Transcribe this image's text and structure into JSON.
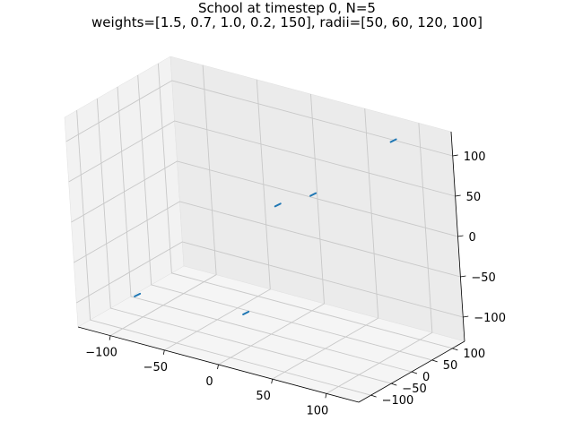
{
  "chart_data": {
    "type": "quiver3d",
    "title": "School at timestep 0, N=5",
    "subtitle": "weights=[1.5, 0.7, 1.0, 0.2, 150], radii=[50, 60, 120, 100]",
    "xlim": [
      -130,
      130
    ],
    "ylim": [
      -130,
      130
    ],
    "zlim": [
      -130,
      130
    ],
    "x_ticks": [
      -100,
      -50,
      0,
      50,
      100
    ],
    "y_ticks": [
      -100,
      -50,
      0,
      50,
      100
    ],
    "z_ticks": [
      -100,
      -50,
      0,
      50,
      100
    ],
    "x_tick_labels": [
      "−100",
      "−50",
      "0",
      "50",
      "100"
    ],
    "y_tick_labels": [
      "−100",
      "−50",
      "0",
      "50",
      "100"
    ],
    "z_tick_labels": [
      "−100",
      "−50",
      "0",
      "50",
      "100"
    ],
    "grid": true,
    "series": [
      {
        "color": "#1f77b4",
        "points": [
          {
            "x": 85,
            "y": 105,
            "z": 110
          },
          {
            "x": 20,
            "y": 70,
            "z": 30
          },
          {
            "x": 0,
            "y": 35,
            "z": 20
          },
          {
            "x": -100,
            "y": -60,
            "z": -100
          },
          {
            "x": 25,
            "y": -120,
            "z": -60
          }
        ]
      }
    ]
  }
}
